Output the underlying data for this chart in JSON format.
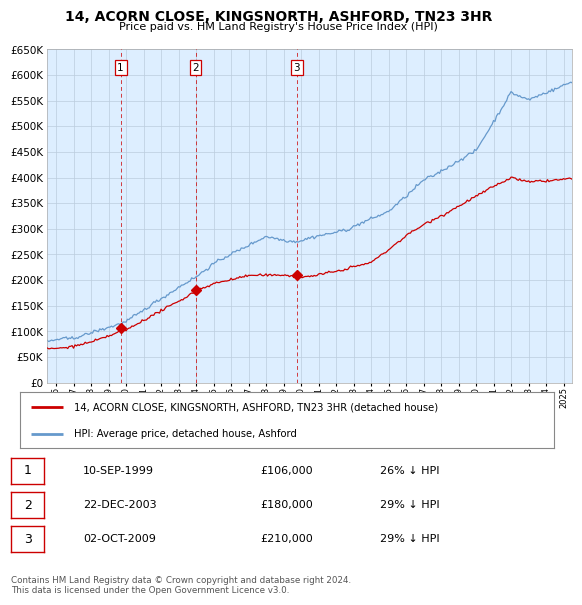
{
  "title": "14, ACORN CLOSE, KINGSNORTH, ASHFORD, TN23 3HR",
  "subtitle": "Price paid vs. HM Land Registry's House Price Index (HPI)",
  "ytick_values": [
    0,
    50000,
    100000,
    150000,
    200000,
    250000,
    300000,
    350000,
    400000,
    450000,
    500000,
    550000,
    600000,
    650000
  ],
  "xmin": 1995.5,
  "xmax": 2025.5,
  "ymin": 0,
  "ymax": 650000,
  "legend_label_red": "14, ACORN CLOSE, KINGSNORTH, ASHFORD, TN23 3HR (detached house)",
  "legend_label_blue": "HPI: Average price, detached house, Ashford",
  "red_color": "#cc0000",
  "blue_color": "#6699cc",
  "chart_bg": "#ddeeff",
  "grid_color": "#bbccdd",
  "sale_dates": [
    1999.69,
    2003.97,
    2009.75
  ],
  "sale_prices": [
    106000,
    180000,
    210000
  ],
  "sale_labels": [
    "1",
    "2",
    "3"
  ],
  "table_data": [
    [
      "1",
      "10-SEP-1999",
      "£106,000",
      "26% ↓ HPI"
    ],
    [
      "2",
      "22-DEC-2003",
      "£180,000",
      "29% ↓ HPI"
    ],
    [
      "3",
      "02-OCT-2009",
      "£210,000",
      "29% ↓ HPI"
    ]
  ],
  "footer": "Contains HM Land Registry data © Crown copyright and database right 2024.\nThis data is licensed under the Open Government Licence v3.0.",
  "background_color": "#ffffff"
}
